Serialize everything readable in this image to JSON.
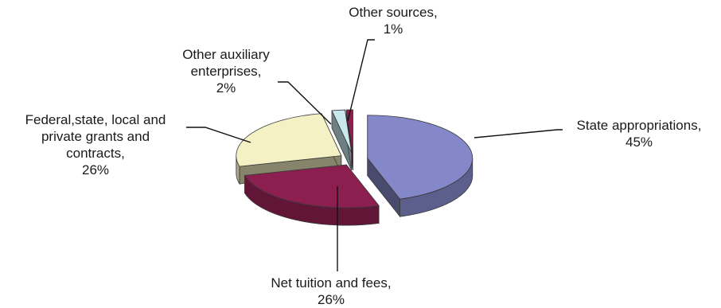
{
  "chart_data": {
    "type": "pie",
    "style": "3d-exploded",
    "title": "",
    "slices": [
      {
        "name": "State appropriations",
        "label_lines": [
          "State appropriations,",
          "45%"
        ],
        "value": 45,
        "color": "#8488c8"
      },
      {
        "name": "Net tuition and fees",
        "label_lines": [
          "Net tuition and fees,",
          "26%"
        ],
        "value": 26,
        "color": "#8c1f4f"
      },
      {
        "name": "Federal,state, local and private grants and contracts",
        "label_lines": [
          "Federal,state, local and",
          "private grants and",
          "contracts,",
          "26%"
        ],
        "value": 26,
        "color": "#f4f2c4"
      },
      {
        "name": "Other auxiliary enterprises",
        "label_lines": [
          "Other auxiliary",
          "enterprises,",
          "2%"
        ],
        "value": 2,
        "color": "#c8e8ee"
      },
      {
        "name": "Other sources",
        "label_lines": [
          "Other sources,",
          "1%"
        ],
        "value": 1,
        "color": "#8c1f4f"
      }
    ],
    "legend": "none",
    "data_labels": "outside with leader lines"
  }
}
